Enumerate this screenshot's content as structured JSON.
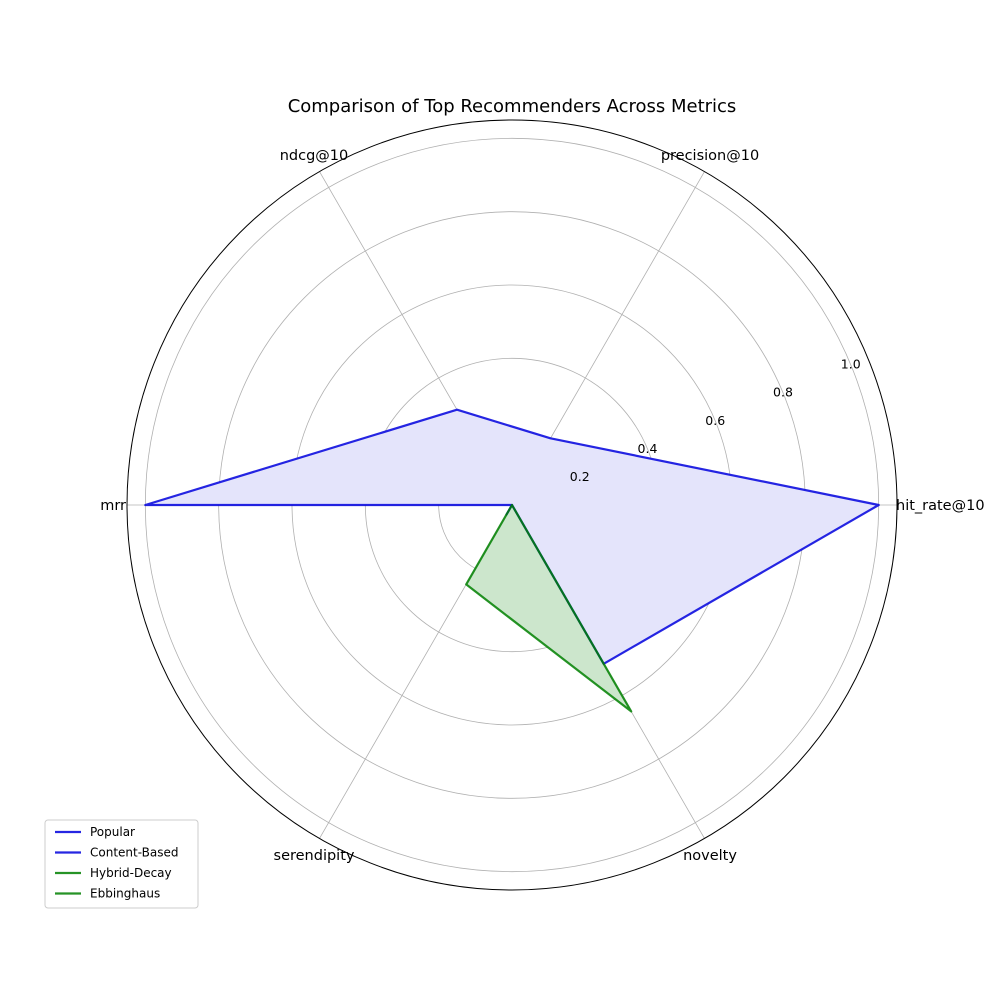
{
  "chart_data": {
    "type": "radar",
    "title": "Comparison of Top Recommenders Across Metrics",
    "axes": [
      "hit_rate@10",
      "precision@10",
      "ndcg@10",
      "mrr",
      "serendipity",
      "novelty"
    ],
    "rlim": [
      0,
      1.05
    ],
    "rticks": [
      0.2,
      0.4,
      0.6,
      0.8,
      1.0
    ],
    "rtick_labels": [
      "0.2",
      "0.4",
      "0.6",
      "0.8",
      "1.0"
    ],
    "grid": true,
    "legend_position": "lower-left",
    "series": [
      {
        "name": "Popular",
        "color": "#0000dd",
        "fill": "#e4e4fb",
        "values": [
          1.0,
          0.21,
          0.3,
          1.0,
          0.0,
          0.5
        ],
        "filled": true
      },
      {
        "name": "Content-Based",
        "color": "#0000dd",
        "fill": "#e4e4fb",
        "values": [
          0.0,
          0.0,
          0.0,
          0.0,
          0.03,
          0.0
        ],
        "filled": true
      },
      {
        "name": "Hybrid-Decay",
        "color": "#008000",
        "fill": "#cce6cc",
        "values": [
          0.0,
          0.0,
          0.0,
          0.0,
          0.25,
          0.65
        ],
        "filled": true
      },
      {
        "name": "Ebbinghaus",
        "color": "#008000",
        "fill": "#cce6cc",
        "values": [
          0.0,
          0.0,
          0.0,
          0.0,
          0.0,
          0.0
        ],
        "filled": true
      }
    ]
  }
}
